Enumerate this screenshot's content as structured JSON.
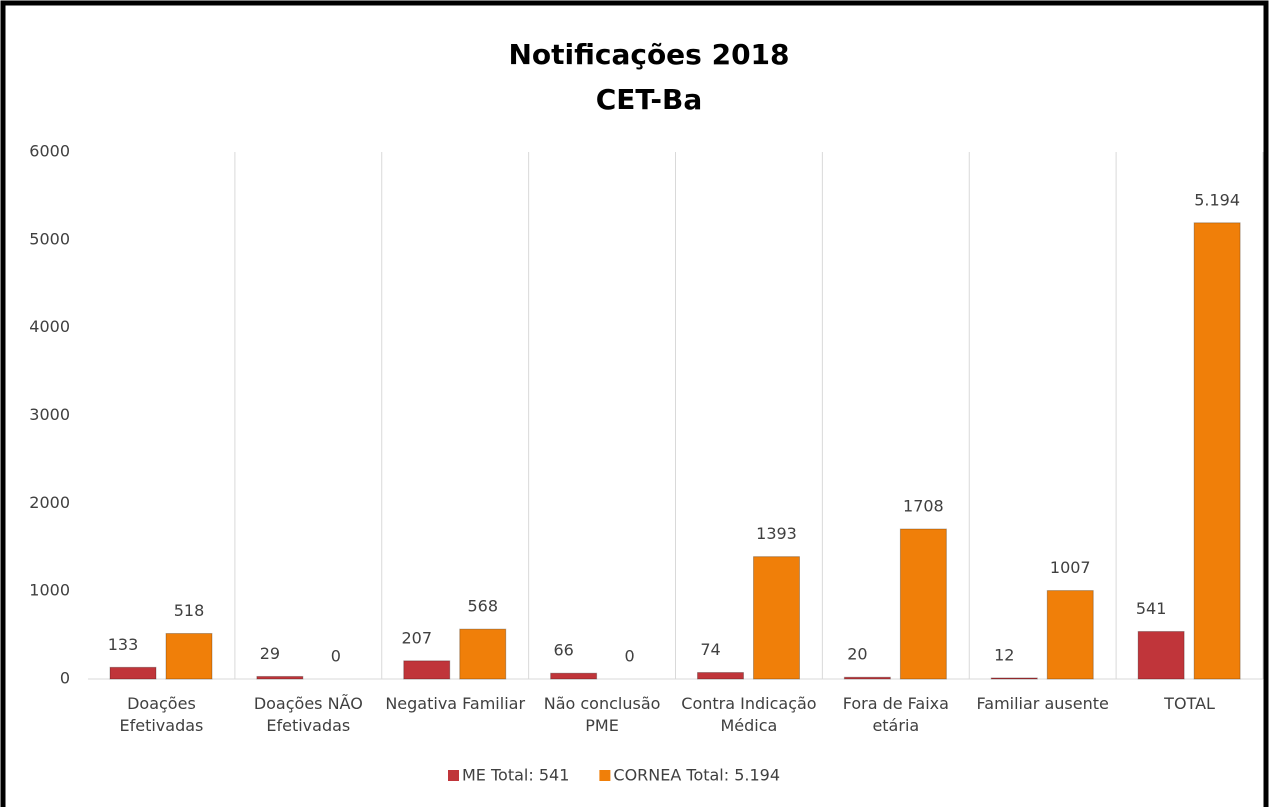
{
  "chart_data": {
    "type": "bar",
    "title": "Notificações 2018",
    "subtitle": "CET-Ba",
    "categories": [
      "Doações Efetivadas",
      "Doações NÃO Efetivadas",
      "Negativa Familiar",
      "Não conclusão PME",
      "Contra Indicação Médica",
      "Fora de Faixa etária",
      "Familiar ausente",
      "TOTAL"
    ],
    "series": [
      {
        "name": "ME Total: 541",
        "color": "#c0353a",
        "values": [
          133,
          29,
          207,
          66,
          74,
          20,
          12,
          541
        ]
      },
      {
        "name": "CORNEA Total: 5.194",
        "color": "#f07f09",
        "values": [
          518,
          0,
          568,
          0,
          1393,
          1708,
          1007,
          5194
        ],
        "value_labels": [
          "518",
          "0",
          "568",
          "0",
          "1393",
          "1708",
          "1007",
          "5.194"
        ]
      }
    ],
    "ylim": [
      0,
      6000
    ],
    "yticks": [
      0,
      1000,
      2000,
      3000,
      4000,
      5000,
      6000
    ],
    "legend": "bottom"
  }
}
